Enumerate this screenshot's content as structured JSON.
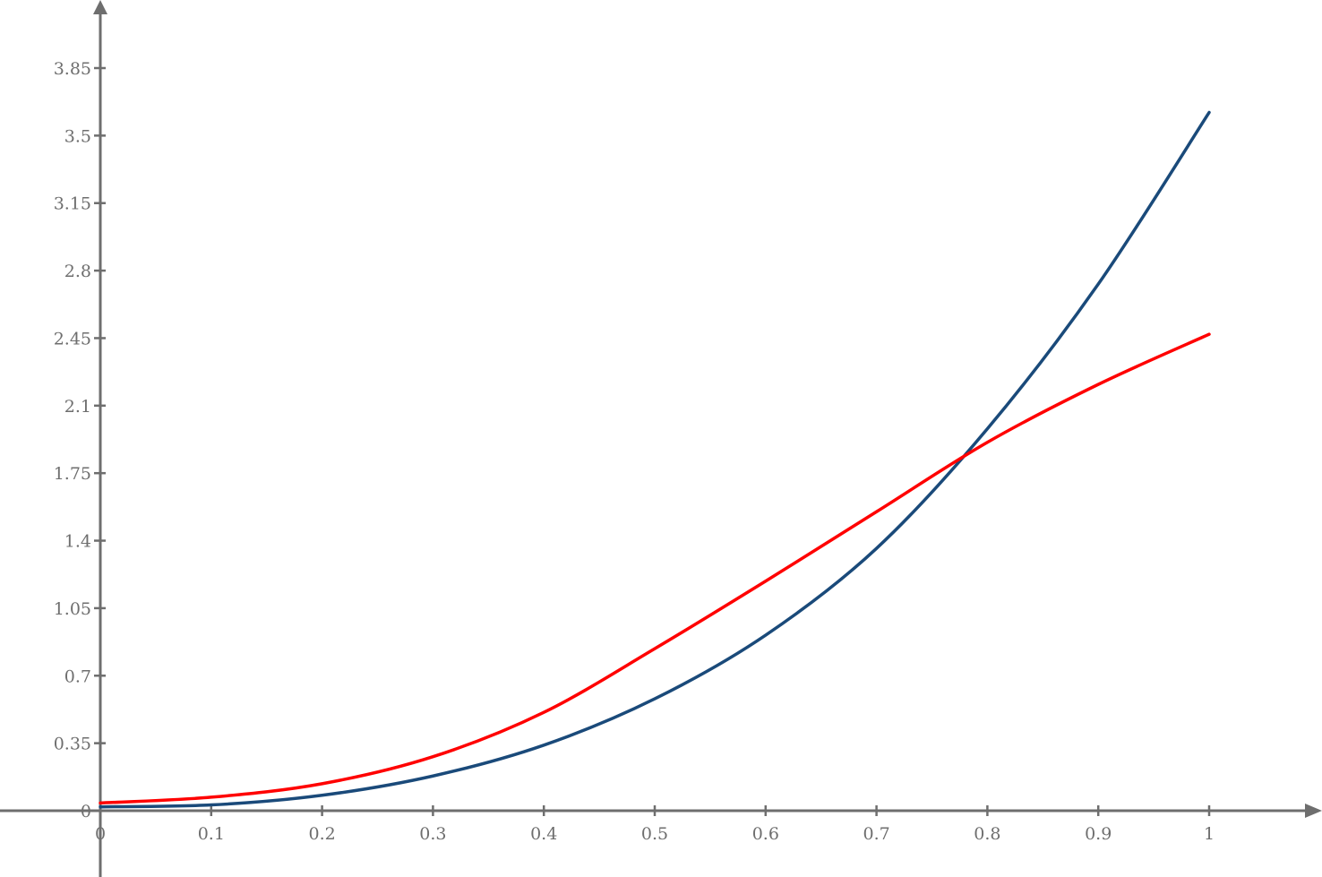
{
  "chart_data": {
    "type": "line",
    "title": "",
    "xlabel": "",
    "ylabel": "",
    "xlim": [
      0,
      1
    ],
    "ylim": [
      0,
      3.85
    ],
    "grid": false,
    "x_ticks": [
      "0",
      "0.1",
      "0.2",
      "0.3",
      "0.4",
      "0.5",
      "0.6",
      "0.7",
      "0.8",
      "0.9",
      "1"
    ],
    "y_ticks": [
      "0",
      "0.35",
      "0.7",
      "1.05",
      "1.4",
      "1.75",
      "2.1",
      "2.45",
      "2.8",
      "3.15",
      "3.5",
      "3.85"
    ],
    "x": [
      0,
      0.1,
      0.2,
      0.3,
      0.4,
      0.5,
      0.6,
      0.7,
      0.8,
      0.9,
      1.0
    ],
    "series": [
      {
        "color": "#1a4a7a",
        "values": [
          0.02,
          0.03,
          0.08,
          0.18,
          0.34,
          0.58,
          0.91,
          1.36,
          1.98,
          2.73,
          3.62
        ]
      },
      {
        "color": "#ff0000",
        "values": [
          0.04,
          0.07,
          0.14,
          0.28,
          0.51,
          0.84,
          1.19,
          1.55,
          1.91,
          2.21,
          2.47
        ]
      }
    ],
    "axis_color": "#6e6e6e"
  }
}
